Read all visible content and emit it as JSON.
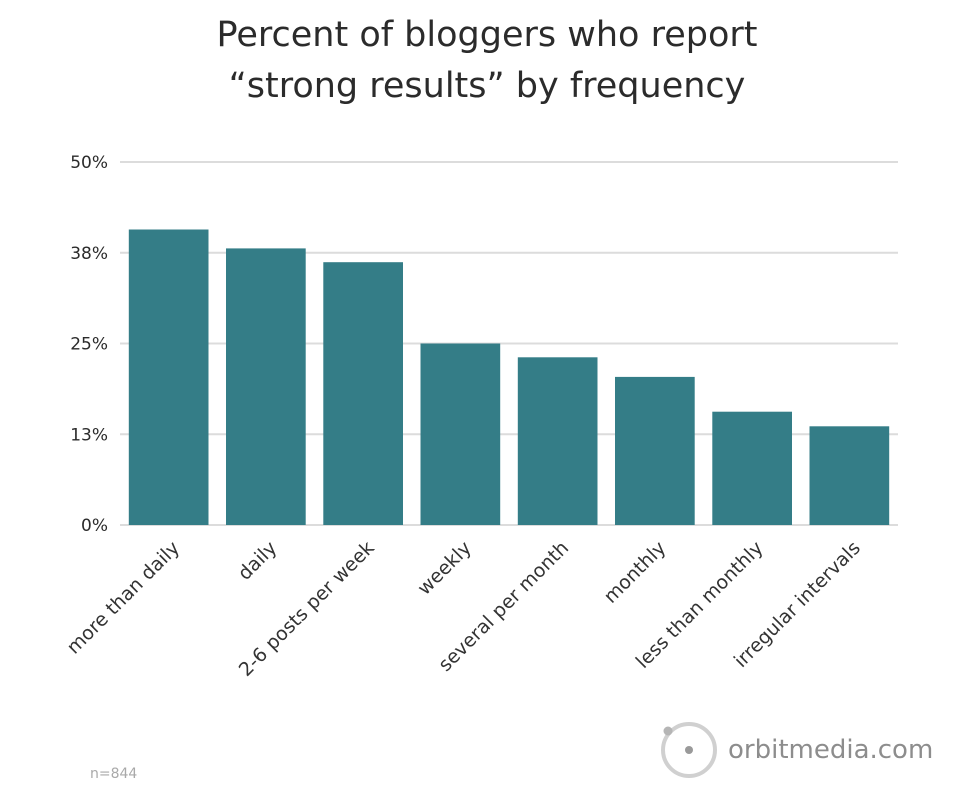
{
  "chart_data": {
    "type": "bar",
    "title_lines": [
      "Percent of bloggers who report",
      "“strong results” by frequency"
    ],
    "xlabel": "",
    "ylabel": "",
    "categories": [
      "more than daily",
      "daily",
      "2-6 posts per week",
      "weekly",
      "several per month",
      "monthly",
      "less than monthly",
      "irregular intervals"
    ],
    "values": [
      40.7,
      38.1,
      36.2,
      25.0,
      23.1,
      20.4,
      15.6,
      13.6
    ],
    "yticks": [
      0,
      12.5,
      25,
      37.5,
      50
    ],
    "ytick_labels": [
      "0%",
      "13%",
      "25%",
      "38%",
      "50%"
    ],
    "ylim": [
      0,
      50
    ],
    "grid": true,
    "legend": "none",
    "bar_color": "#347d87"
  },
  "footnote": "n=844",
  "brand": {
    "text": "orbitmedia.com",
    "icon": "orbit-logo-icon"
  },
  "colors": {
    "bar": "#347d87",
    "grid": "#dcdcdc",
    "text": "#2b2b2b",
    "muted": "#a9a9a9"
  }
}
